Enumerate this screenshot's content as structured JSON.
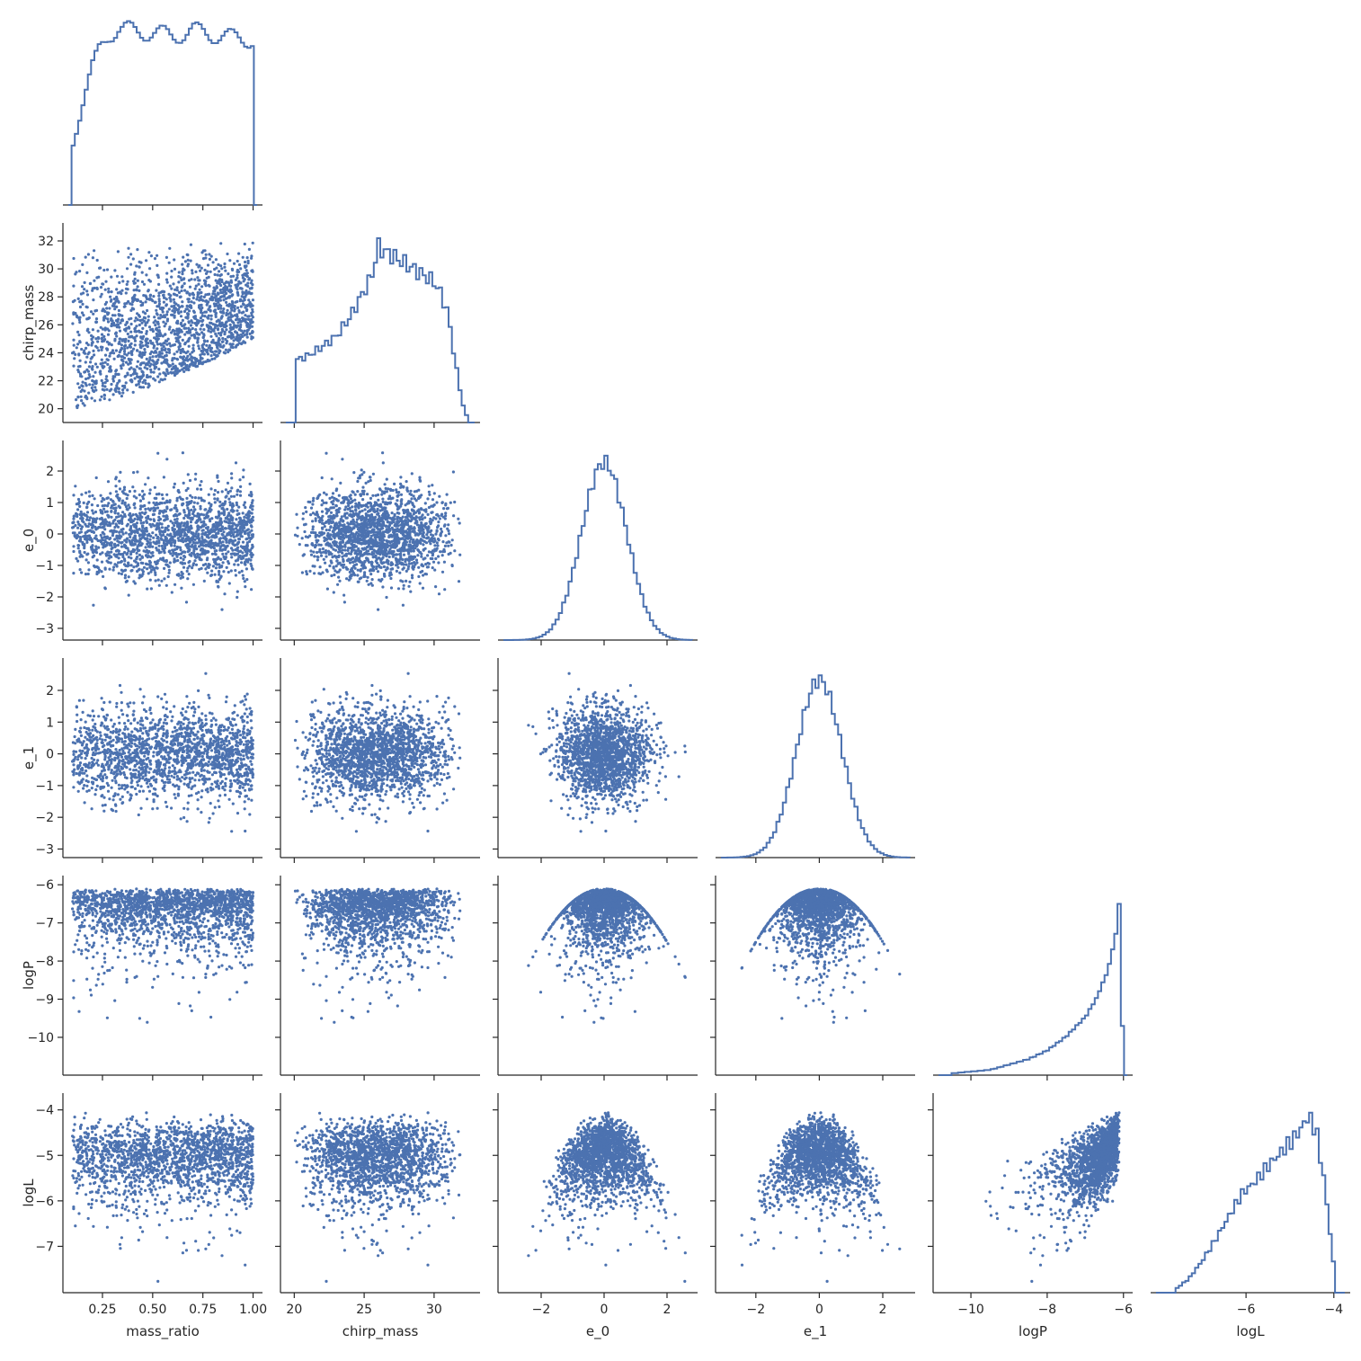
{
  "colors": {
    "series": "#4c72b0",
    "axis": "#262626",
    "background": "#ffffff"
  },
  "chart_data": {
    "type": "pairplot",
    "layout": "lower-triangle corner plot; diagonal = step histograms, lower = scatter",
    "variables": [
      {
        "name": "mass_ratio",
        "label": "mass_ratio",
        "lim": [
          0.08,
          1.02
        ],
        "ticks": [
          0.25,
          0.5,
          0.75,
          1.0
        ],
        "tick_labels": [
          "0.25",
          "0.50",
          "0.75",
          "1.00"
        ]
      },
      {
        "name": "chirp_mass",
        "label": "chirp_mass",
        "lim": [
          19.4,
          32.9
        ],
        "ticks": [
          20,
          22,
          24,
          26,
          28,
          30,
          32
        ],
        "tick_labels": [
          "20",
          "22",
          "24",
          "26",
          "28",
          "30",
          "32"
        ],
        "x_ticks": [
          20,
          25,
          30
        ],
        "x_tick_labels": [
          "20",
          "25",
          "30"
        ]
      },
      {
        "name": "e_0",
        "label": "e_0",
        "lim": [
          -3.2,
          2.8
        ],
        "ticks": [
          -3,
          -2,
          -1,
          0,
          1,
          2
        ],
        "tick_labels": [
          "−3",
          "−2",
          "−1",
          "0",
          "1",
          "2"
        ],
        "x_ticks": [
          -2,
          0,
          2
        ],
        "x_tick_labels": [
          "−2",
          "0",
          "2"
        ]
      },
      {
        "name": "e_1",
        "label": "e_1",
        "lim": [
          -3.1,
          2.85
        ],
        "ticks": [
          -3,
          -2,
          -1,
          0,
          1,
          2
        ],
        "tick_labels": [
          "−3",
          "−2",
          "−1",
          "0",
          "1",
          "2"
        ],
        "x_ticks": [
          -2,
          0,
          2
        ],
        "x_tick_labels": [
          "−2",
          "0",
          "2"
        ]
      },
      {
        "name": "logP",
        "label": "logP",
        "lim": [
          -10.85,
          -5.9
        ],
        "ticks": [
          -10,
          -9,
          -8,
          -7,
          -6
        ],
        "tick_labels": [
          "−10",
          "−9",
          "−8",
          "−7",
          "−6"
        ],
        "x_ticks": [
          -10,
          -8,
          -6
        ],
        "x_tick_labels": [
          "−10",
          "−8",
          "−6"
        ]
      },
      {
        "name": "logL",
        "label": "logL",
        "lim": [
          -7.9,
          -3.75
        ],
        "ticks": [
          -7,
          -6,
          -5,
          -4
        ],
        "tick_labels": [
          "−7",
          "−6",
          "−5",
          "−4"
        ],
        "x_ticks": [
          -6,
          -4
        ],
        "x_tick_labels": [
          "−6",
          "−4"
        ],
        "x_lim": [
          -8.05,
          -3.75
        ]
      }
    ],
    "diagonal_histograms": [
      {
        "variable": "mass_ratio",
        "bin_edges": [
          0.1,
          0.85
        ],
        "x": [
          0.1,
          0.13,
          0.16,
          0.2,
          0.24,
          0.28,
          0.33,
          0.4,
          0.5,
          0.6,
          0.7,
          0.8,
          0.9,
          1.0
        ],
        "density": [
          0.33,
          0.47,
          0.62,
          0.78,
          0.9,
          0.97,
          1.0,
          0.99,
          0.98,
          0.96,
          0.99,
          0.97,
          0.95,
          0.94
        ]
      },
      {
        "variable": "chirp_mass",
        "x": [
          20,
          21,
          22,
          23,
          24,
          25,
          25.5,
          26,
          26.5,
          27,
          28,
          29,
          30,
          30.5,
          31,
          31.5,
          32,
          32.4
        ],
        "density": [
          0.35,
          0.38,
          0.43,
          0.49,
          0.6,
          0.75,
          0.82,
          1.0,
          0.97,
          0.95,
          0.9,
          0.85,
          0.8,
          0.73,
          0.62,
          0.35,
          0.12,
          0.02
        ]
      },
      {
        "variable": "e_0",
        "distribution": "approx standard normal",
        "mean": 0.0,
        "std": 0.72
      },
      {
        "variable": "e_1",
        "distribution": "approx standard normal",
        "mean": 0.0,
        "std": 0.72
      },
      {
        "variable": "logP",
        "distribution": "left-skewed, sharp cutoff near -6",
        "x": [
          -10.5,
          -9.5,
          -9,
          -8.5,
          -8,
          -7.5,
          -7,
          -6.7,
          -6.4,
          -6.2,
          -6.1,
          -6.0
        ],
        "density": [
          0.01,
          0.03,
          0.06,
          0.09,
          0.14,
          0.22,
          0.33,
          0.44,
          0.6,
          0.8,
          1.0,
          0.0
        ]
      },
      {
        "variable": "logL",
        "x": [
          -7.6,
          -7.3,
          -7.0,
          -6.7,
          -6.4,
          -6.1,
          -5.8,
          -5.5,
          -5.2,
          -4.9,
          -4.7,
          -4.6,
          -4.5,
          -4.4,
          -4.2,
          -4.0,
          -3.95
        ],
        "density": [
          0.02,
          0.08,
          0.18,
          0.3,
          0.43,
          0.56,
          0.63,
          0.72,
          0.8,
          0.88,
          0.95,
          1.0,
          0.97,
          0.92,
          0.6,
          0.15,
          0.0
        ]
      }
    ],
    "scatter_panels": [
      {
        "x": "mass_ratio",
        "y": "chirp_mass",
        "shape": "rises with mass_ratio; lower bound ~20 at q<0.3, ~25 at q=1; upper ~32"
      },
      {
        "x": "mass_ratio",
        "y": "e_0",
        "shape": "uniform band, e_0 normal"
      },
      {
        "x": "chirp_mass",
        "y": "e_0",
        "shape": "uniform band"
      },
      {
        "x": "mass_ratio",
        "y": "e_1",
        "shape": "uniform band"
      },
      {
        "x": "chirp_mass",
        "y": "e_1",
        "shape": "uniform band"
      },
      {
        "x": "e_0",
        "y": "e_1",
        "shape": "circular gaussian cloud"
      },
      {
        "x": "mass_ratio",
        "y": "logP",
        "shape": "dense at -6.1, tail down to -10.6"
      },
      {
        "x": "chirp_mass",
        "y": "logP",
        "shape": "dense at -6.1, tail down"
      },
      {
        "x": "e_0",
        "y": "logP",
        "shape": "inverted parabola, max -6.1 at 0"
      },
      {
        "x": "e_1",
        "y": "logP",
        "shape": "inverted parabola, max -6.1 at 0"
      },
      {
        "x": "mass_ratio",
        "y": "logL",
        "shape": "band -7.5 to -4"
      },
      {
        "x": "chirp_mass",
        "y": "logL",
        "shape": "rounded top near -4"
      },
      {
        "x": "e_0",
        "y": "logL",
        "shape": "mound, peak -4 at 0"
      },
      {
        "x": "e_1",
        "y": "logL",
        "shape": "mound, peak -4 at 0"
      },
      {
        "x": "logP",
        "y": "logL",
        "shape": "wedge rising to -4 at logP=-6"
      }
    ]
  }
}
